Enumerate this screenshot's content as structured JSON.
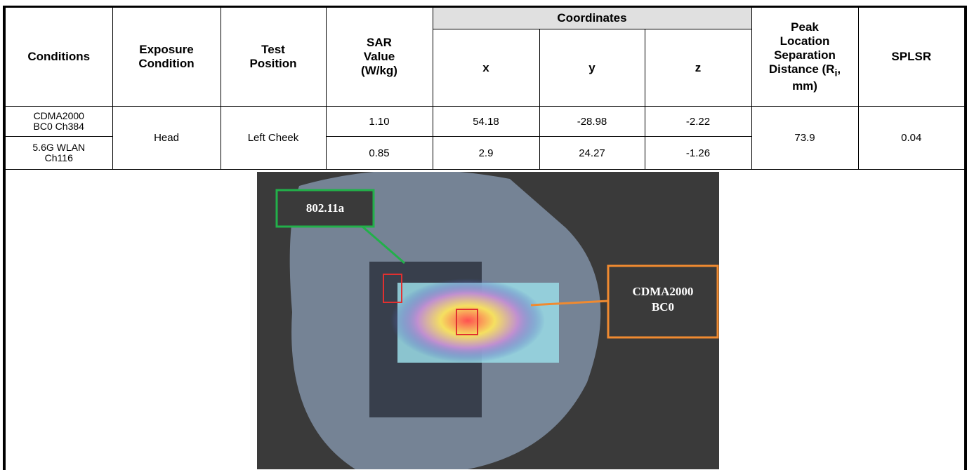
{
  "table": {
    "header": {
      "conditions": "Conditions",
      "exposure_condition": "Exposure Condition",
      "test_position": "Test Position",
      "sar_value": "SAR Value (W/kg)",
      "coordinates": "Coordinates",
      "x": "x",
      "y": "y",
      "z": "z",
      "peak_location": {
        "before": "Peak Location Separation Distance (R",
        "subscript": "i",
        "after": ", mm)"
      },
      "splsr": "SPLSR"
    },
    "rows": [
      {
        "condition": "CDMA2000 BC0 Ch384",
        "sar_value": "1.10",
        "x": "54.18",
        "y": "-28.98",
        "z": "-2.22"
      },
      {
        "condition": "5.6G WLAN Ch116",
        "sar_value": "0.85",
        "x": "2.9",
        "y": "24.27",
        "z": "-1.26"
      }
    ],
    "exposure_condition": "Head",
    "test_position": "Left Cheek",
    "peak_location_separation": "73.9",
    "splsr": "0.04"
  },
  "figure": {
    "labels": [
      "802.11a",
      "CDMA2000 BC0"
    ]
  }
}
